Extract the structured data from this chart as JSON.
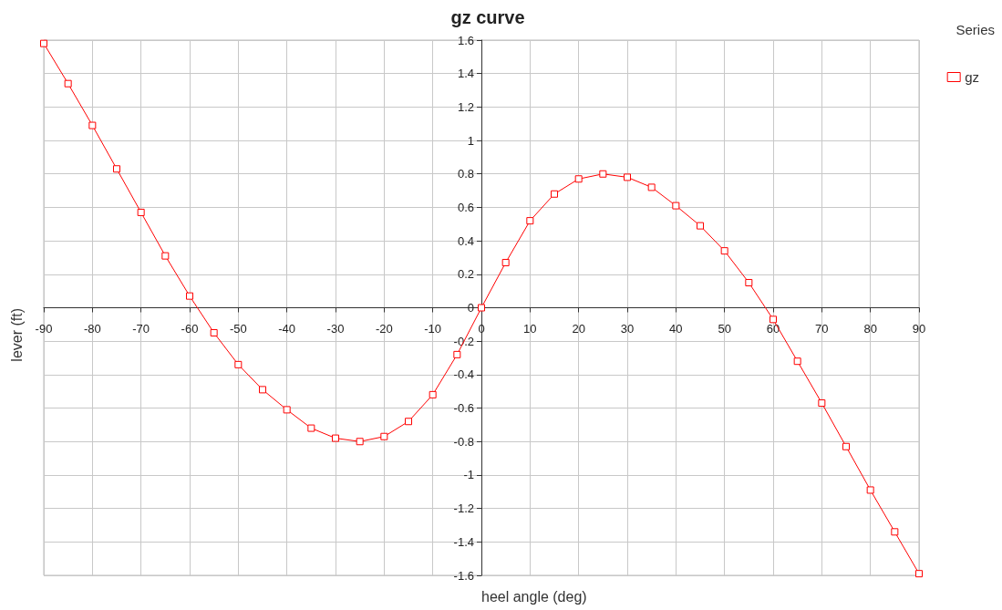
{
  "chart_data": {
    "type": "line",
    "title": "gz curve",
    "xlabel": "heel angle (deg)",
    "ylabel": "lever (ft)",
    "legend_title": "Series",
    "x": [
      -90,
      -85,
      -80,
      -75,
      -70,
      -65,
      -60,
      -55,
      -50,
      -45,
      -40,
      -35,
      -30,
      -25,
      -20,
      -15,
      -10,
      -5,
      0,
      5,
      10,
      15,
      20,
      25,
      30,
      35,
      40,
      45,
      50,
      55,
      60,
      65,
      70,
      75,
      80,
      85,
      90
    ],
    "series": [
      {
        "name": "gz",
        "color": "#ff0000",
        "values": [
          1.58,
          1.34,
          1.09,
          0.83,
          0.57,
          0.31,
          0.07,
          -0.15,
          -0.34,
          -0.49,
          -0.61,
          -0.72,
          -0.78,
          -0.8,
          -0.77,
          -0.68,
          -0.52,
          -0.28,
          0,
          0.27,
          0.52,
          0.68,
          0.77,
          0.8,
          0.78,
          0.72,
          0.61,
          0.49,
          0.34,
          0.15,
          -0.07,
          -0.32,
          -0.57,
          -0.83,
          -1.09,
          -1.34,
          -1.59
        ]
      }
    ],
    "xlim": [
      -90,
      90
    ],
    "xticks": [
      -90,
      -80,
      -70,
      -60,
      -50,
      -40,
      -30,
      -20,
      -10,
      0,
      10,
      20,
      30,
      40,
      50,
      60,
      70,
      80,
      90
    ],
    "ylim": [
      -1.6,
      1.6
    ],
    "yticks": [
      -1.6,
      -1.4,
      -1.2,
      -1,
      -0.8,
      -0.6,
      -0.4,
      -0.2,
      0,
      0.2,
      0.4,
      0.6,
      0.8,
      1,
      1.2,
      1.4,
      1.6
    ],
    "grid": true,
    "legend": "top right",
    "marker": "square",
    "line_style": "solid"
  }
}
